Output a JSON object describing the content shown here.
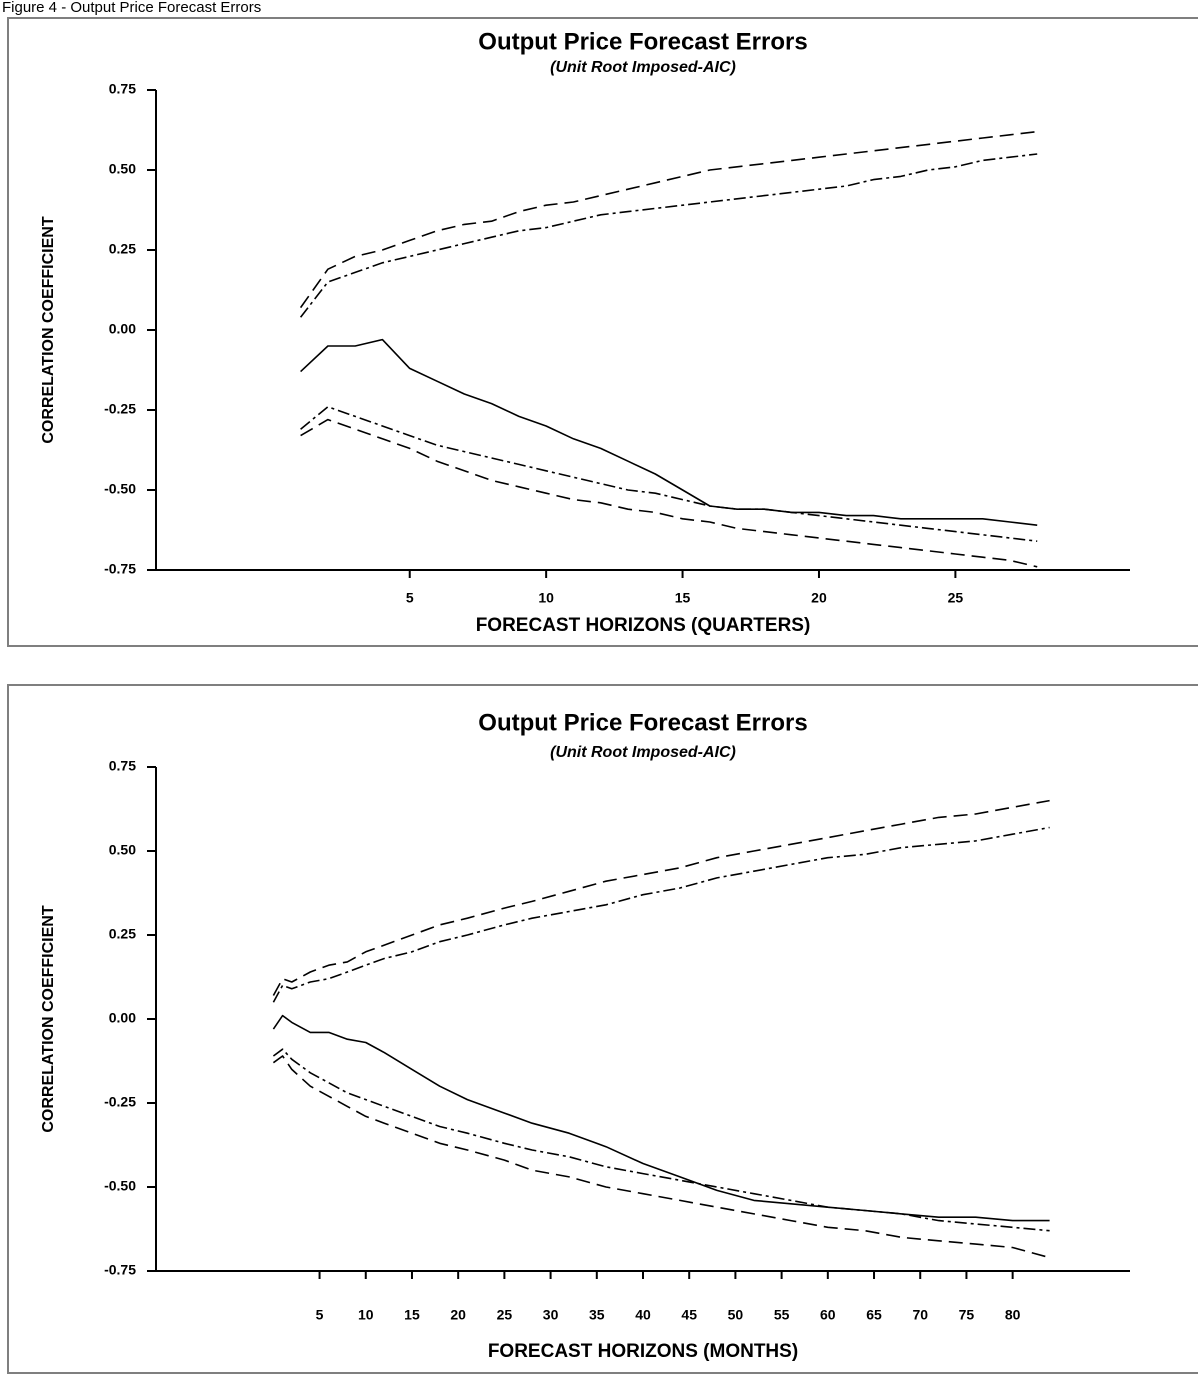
{
  "caption": "Figure 4 - Output Price Forecast Errors",
  "chart_data": [
    {
      "type": "line",
      "title": "Output Price Forecast Errors",
      "subtitle": "(Unit Root Imposed-AIC)",
      "xlabel": "FORECAST HORIZONS (QUARTERS)",
      "ylabel": "CORRELATION COEFFICIENT",
      "xlim": [
        -4.3,
        31.4
      ],
      "ylim": [
        -0.75,
        0.75
      ],
      "xticks": [
        5,
        10,
        15,
        20,
        25
      ],
      "xtick_labels": [
        "5",
        "10",
        "15",
        "20",
        "25"
      ],
      "yticks": [
        0.75,
        0.5,
        0.25,
        0.0,
        -0.25,
        -0.5,
        -0.75
      ],
      "ytick_labels": [
        "0.75",
        "0.50",
        "0.25",
        "0.00",
        "-0.25",
        "-0.50",
        "-0.75"
      ],
      "grid": false,
      "series": [
        {
          "style": "solid",
          "x": [
            1,
            2,
            3,
            4,
            5,
            6,
            7,
            8,
            9,
            10,
            11,
            12,
            13,
            14,
            15,
            16,
            17,
            18,
            19,
            20,
            21,
            22,
            23,
            24,
            25,
            26,
            27,
            28
          ],
          "values": [
            -0.13,
            -0.05,
            -0.05,
            -0.03,
            -0.12,
            -0.16,
            -0.2,
            -0.23,
            -0.27,
            -0.3,
            -0.34,
            -0.37,
            -0.41,
            -0.45,
            -0.5,
            -0.55,
            -0.56,
            -0.56,
            -0.57,
            -0.57,
            -0.58,
            -0.58,
            -0.59,
            -0.59,
            -0.59,
            -0.59,
            -0.6,
            -0.61
          ]
        },
        {
          "style": "dash-dot",
          "x": [
            1,
            2,
            3,
            4,
            5,
            6,
            7,
            8,
            9,
            10,
            11,
            12,
            13,
            14,
            15,
            16,
            17,
            18,
            19,
            20,
            21,
            22,
            23,
            24,
            25,
            26,
            27,
            28
          ],
          "values": [
            0.04,
            0.15,
            0.18,
            0.21,
            0.23,
            0.25,
            0.27,
            0.29,
            0.31,
            0.32,
            0.34,
            0.36,
            0.37,
            0.38,
            0.39,
            0.4,
            0.41,
            0.42,
            0.43,
            0.44,
            0.45,
            0.47,
            0.48,
            0.5,
            0.51,
            0.53,
            0.54,
            0.55
          ]
        },
        {
          "style": "dashed",
          "x": [
            1,
            2,
            3,
            4,
            5,
            6,
            7,
            8,
            9,
            10,
            11,
            12,
            13,
            14,
            15,
            16,
            17,
            18,
            19,
            20,
            21,
            22,
            23,
            24,
            25,
            26,
            27,
            28
          ],
          "values": [
            0.07,
            0.19,
            0.23,
            0.25,
            0.28,
            0.31,
            0.33,
            0.34,
            0.37,
            0.39,
            0.4,
            0.42,
            0.44,
            0.46,
            0.48,
            0.5,
            0.51,
            0.52,
            0.53,
            0.54,
            0.55,
            0.56,
            0.57,
            0.58,
            0.59,
            0.6,
            0.61,
            0.62
          ]
        },
        {
          "style": "dash-dot",
          "x": [
            1,
            2,
            3,
            4,
            5,
            6,
            7,
            8,
            9,
            10,
            11,
            12,
            13,
            14,
            15,
            16,
            17,
            18,
            19,
            20,
            21,
            22,
            23,
            24,
            25,
            26,
            27,
            28
          ],
          "values": [
            -0.31,
            -0.24,
            -0.27,
            -0.3,
            -0.33,
            -0.36,
            -0.38,
            -0.4,
            -0.42,
            -0.44,
            -0.46,
            -0.48,
            -0.5,
            -0.51,
            -0.53,
            -0.55,
            -0.56,
            -0.56,
            -0.57,
            -0.58,
            -0.59,
            -0.6,
            -0.61,
            -0.62,
            -0.63,
            -0.64,
            -0.65,
            -0.66
          ]
        },
        {
          "style": "dashed",
          "x": [
            1,
            2,
            3,
            4,
            5,
            6,
            7,
            8,
            9,
            10,
            11,
            12,
            13,
            14,
            15,
            16,
            17,
            18,
            19,
            20,
            21,
            22,
            23,
            24,
            25,
            26,
            27,
            28
          ],
          "values": [
            -0.33,
            -0.28,
            -0.31,
            -0.34,
            -0.37,
            -0.41,
            -0.44,
            -0.47,
            -0.49,
            -0.51,
            -0.53,
            -0.54,
            -0.56,
            -0.57,
            -0.59,
            -0.6,
            -0.62,
            -0.63,
            -0.64,
            -0.65,
            -0.66,
            -0.67,
            -0.68,
            -0.69,
            -0.7,
            -0.71,
            -0.72,
            -0.74
          ]
        }
      ]
    },
    {
      "type": "line",
      "title": "Output Price Forecast Errors",
      "subtitle": "(Unit Root Imposed-AIC)",
      "xlabel": "FORECAST HORIZONS (MONTHS)",
      "ylabel": "CORRELATION COEFFICIENT",
      "xlim": [
        -12.7,
        92.7
      ],
      "ylim": [
        -0.75,
        0.75
      ],
      "xticks": [
        5,
        10,
        15,
        20,
        25,
        30,
        35,
        40,
        45,
        50,
        55,
        60,
        65,
        70,
        75,
        80
      ],
      "xtick_labels": [
        "5",
        "10",
        "15",
        "20",
        "25",
        "30",
        "35",
        "40",
        "45",
        "50",
        "55",
        "60",
        "65",
        "70",
        "75",
        "80"
      ],
      "yticks": [
        0.75,
        0.5,
        0.25,
        0.0,
        -0.25,
        -0.5,
        -0.75
      ],
      "ytick_labels": [
        "0.75",
        "0.50",
        "0.25",
        "0.00",
        "-0.25",
        "-0.50",
        "-0.75"
      ],
      "grid": false,
      "series": [
        {
          "style": "solid",
          "x": [
            0,
            1,
            2,
            4,
            6,
            8,
            10,
            12,
            15,
            18,
            21,
            25,
            28,
            32,
            36,
            40,
            44,
            48,
            52,
            56,
            60,
            64,
            68,
            72,
            76,
            80,
            84
          ],
          "values": [
            -0.03,
            0.01,
            -0.01,
            -0.04,
            -0.04,
            -0.06,
            -0.07,
            -0.1,
            -0.15,
            -0.2,
            -0.24,
            -0.28,
            -0.31,
            -0.34,
            -0.38,
            -0.43,
            -0.47,
            -0.51,
            -0.54,
            -0.55,
            -0.56,
            -0.57,
            -0.58,
            -0.59,
            -0.59,
            -0.6,
            -0.6
          ]
        },
        {
          "style": "dash-dot",
          "x": [
            0,
            1,
            2,
            4,
            6,
            8,
            10,
            12,
            15,
            18,
            21,
            25,
            28,
            32,
            36,
            40,
            44,
            48,
            52,
            56,
            60,
            64,
            68,
            72,
            76,
            80,
            84
          ],
          "values": [
            0.05,
            0.1,
            0.09,
            0.11,
            0.12,
            0.14,
            0.16,
            0.18,
            0.2,
            0.23,
            0.25,
            0.28,
            0.3,
            0.32,
            0.34,
            0.37,
            0.39,
            0.42,
            0.44,
            0.46,
            0.48,
            0.49,
            0.51,
            0.52,
            0.53,
            0.55,
            0.57
          ]
        },
        {
          "style": "dashed",
          "x": [
            0,
            1,
            2,
            4,
            6,
            8,
            10,
            12,
            15,
            18,
            21,
            25,
            28,
            32,
            36,
            40,
            44,
            48,
            52,
            56,
            60,
            64,
            68,
            72,
            76,
            80,
            84
          ],
          "values": [
            0.07,
            0.12,
            0.11,
            0.14,
            0.16,
            0.17,
            0.2,
            0.22,
            0.25,
            0.28,
            0.3,
            0.33,
            0.35,
            0.38,
            0.41,
            0.43,
            0.45,
            0.48,
            0.5,
            0.52,
            0.54,
            0.56,
            0.58,
            0.6,
            0.61,
            0.63,
            0.65
          ]
        },
        {
          "style": "dash-dot",
          "x": [
            0,
            1,
            2,
            4,
            6,
            8,
            10,
            12,
            15,
            18,
            21,
            25,
            28,
            32,
            36,
            40,
            44,
            48,
            52,
            56,
            60,
            64,
            68,
            72,
            76,
            80,
            84
          ],
          "values": [
            -0.11,
            -0.09,
            -0.12,
            -0.16,
            -0.19,
            -0.22,
            -0.24,
            -0.26,
            -0.29,
            -0.32,
            -0.34,
            -0.37,
            -0.39,
            -0.41,
            -0.44,
            -0.46,
            -0.48,
            -0.5,
            -0.52,
            -0.54,
            -0.56,
            -0.57,
            -0.58,
            -0.6,
            -0.61,
            -0.62,
            -0.63
          ]
        },
        {
          "style": "dashed",
          "x": [
            0,
            1,
            2,
            4,
            6,
            8,
            10,
            12,
            15,
            18,
            21,
            25,
            28,
            32,
            36,
            40,
            44,
            48,
            52,
            56,
            60,
            64,
            68,
            72,
            76,
            80,
            84
          ],
          "values": [
            -0.13,
            -0.11,
            -0.15,
            -0.2,
            -0.23,
            -0.26,
            -0.29,
            -0.31,
            -0.34,
            -0.37,
            -0.39,
            -0.42,
            -0.45,
            -0.47,
            -0.5,
            -0.52,
            -0.54,
            -0.56,
            -0.58,
            -0.6,
            -0.62,
            -0.63,
            -0.65,
            -0.66,
            -0.67,
            -0.68,
            -0.71
          ]
        }
      ]
    }
  ]
}
